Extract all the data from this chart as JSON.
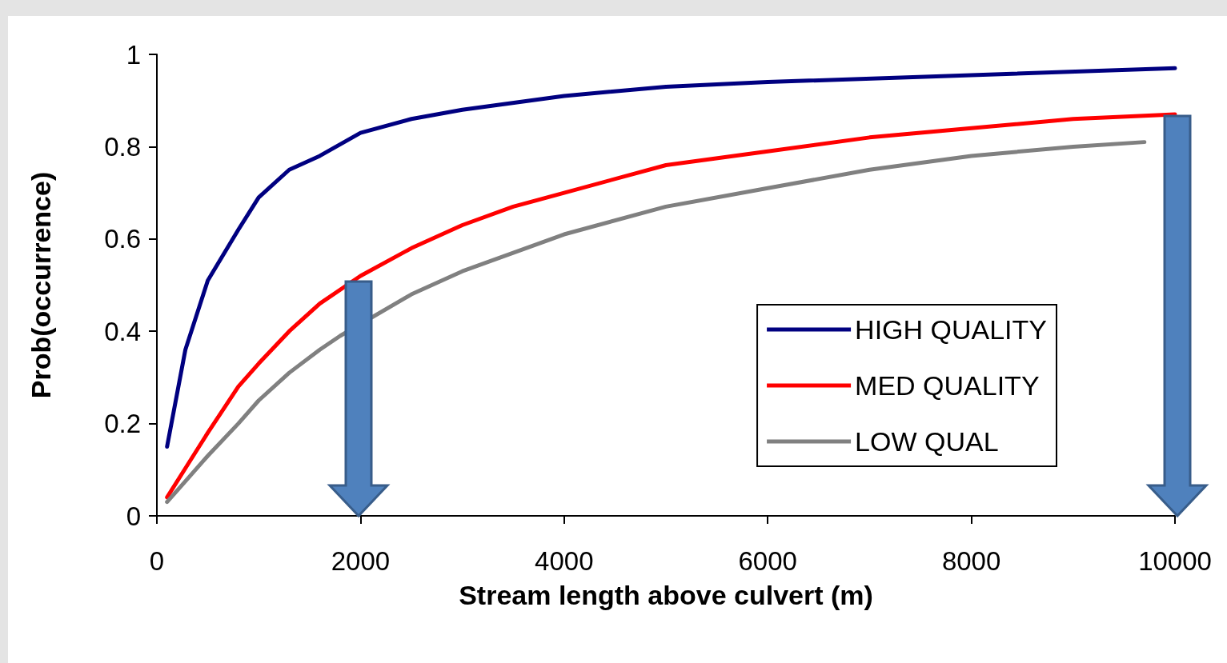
{
  "chart_data": {
    "type": "line",
    "xlabel": "Stream length above culvert (m)",
    "ylabel": "Prob(occurrence)",
    "xlim": [
      0,
      10000
    ],
    "xticks": [
      0,
      2000,
      4000,
      6000,
      8000,
      10000
    ],
    "ylim": [
      0,
      1
    ],
    "yticks": [
      0,
      0.2,
      0.4,
      0.6,
      0.8,
      1
    ],
    "grid": false,
    "legend": "bottom right",
    "marker": "none",
    "line_style": "solid",
    "series": [
      {
        "name": "HIGH QUALITY",
        "color": "#000080",
        "x": [
          100,
          280,
          500,
          800,
          1000,
          1300,
          1600,
          2000,
          2500,
          3000,
          4000,
          5000,
          6000,
          8000,
          10000
        ],
        "values": [
          0.15,
          0.36,
          0.51,
          0.62,
          0.69,
          0.75,
          0.78,
          0.83,
          0.86,
          0.88,
          0.91,
          0.93,
          0.94,
          0.955,
          0.97
        ]
      },
      {
        "name": "MED QUALITY",
        "color": "#ff0000",
        "x": [
          100,
          300,
          500,
          800,
          1000,
          1300,
          1600,
          2000,
          2500,
          3000,
          3500,
          4000,
          5000,
          6000,
          7000,
          8000,
          9000,
          10000
        ],
        "values": [
          0.04,
          0.11,
          0.18,
          0.28,
          0.33,
          0.4,
          0.46,
          0.52,
          0.58,
          0.63,
          0.67,
          0.7,
          0.76,
          0.79,
          0.82,
          0.84,
          0.86,
          0.87
        ]
      },
      {
        "name": "LOW QUAL",
        "color": "#808080",
        "x": [
          100,
          300,
          500,
          800,
          1000,
          1300,
          1600,
          1800,
          2000,
          2500,
          3000,
          3500,
          4000,
          5000,
          6000,
          7000,
          8000,
          9000,
          9700
        ],
        "values": [
          0.03,
          0.08,
          0.13,
          0.2,
          0.25,
          0.31,
          0.36,
          0.39,
          null,
          0.48,
          0.53,
          0.57,
          0.61,
          0.67,
          0.71,
          0.75,
          0.78,
          0.8,
          0.81
        ]
      }
    ]
  }
}
